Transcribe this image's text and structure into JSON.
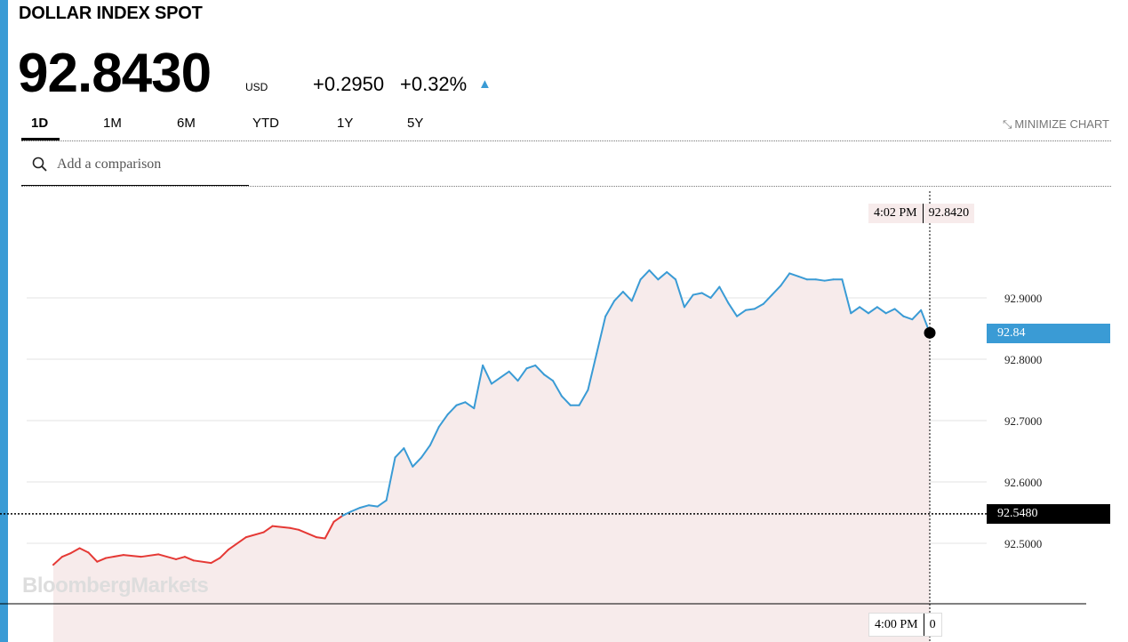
{
  "header": {
    "title": "DOLLAR INDEX SPOT",
    "price": "92.8430",
    "currency": "USD",
    "change_abs": "+0.2950",
    "change_pct": "+0.32%",
    "change_direction": "up",
    "accent_color": "#3a9bd5"
  },
  "tabs": [
    {
      "label": "1D",
      "active": true
    },
    {
      "label": "1M"
    },
    {
      "label": "6M"
    },
    {
      "label": "YTD"
    },
    {
      "label": "1Y"
    },
    {
      "label": "5Y"
    }
  ],
  "minimize": {
    "label": "MINIMIZE CHART",
    "icon": "collapse-arrows-icon"
  },
  "comparison": {
    "placeholder": "Add a comparison",
    "icon": "search-icon"
  },
  "watermark": "BloombergMarkets",
  "chart_data": {
    "type": "line",
    "yticks": [
      "92.9000",
      "92.8000",
      "92.7000",
      "92.6000",
      "92.5000"
    ],
    "ylim": [
      92.4,
      92.965
    ],
    "xlim": [
      0,
      1
    ],
    "grid": true,
    "previous_close": 92.548,
    "previous_close_label": "92.5480",
    "current_value": 92.843,
    "current_label": "92.84",
    "hover": {
      "time": "4:02 PM",
      "value": "92.8420"
    },
    "axis_readout": {
      "time": "4:00 PM",
      "value": "0"
    },
    "colors": {
      "above": "#3a9bd5",
      "below": "#e53935",
      "fill": "#f7ebeb",
      "baseline_tag": "#000000"
    },
    "series": [
      {
        "x": [
          0,
          0.01,
          0.02,
          0.03,
          0.04,
          0.05,
          0.06,
          0.08,
          0.1,
          0.12,
          0.14,
          0.15,
          0.16,
          0.18,
          0.19,
          0.2,
          0.22,
          0.24,
          0.25,
          0.27,
          0.28,
          0.3,
          0.31,
          0.32,
          0.33,
          0.34,
          0.35,
          0.36,
          0.37,
          0.38,
          0.39,
          0.4,
          0.41,
          0.42,
          0.43,
          0.44,
          0.45,
          0.46,
          0.47,
          0.48,
          0.49,
          0.5,
          0.51,
          0.52,
          0.53,
          0.54,
          0.55,
          0.56,
          0.57,
          0.58,
          0.59,
          0.6,
          0.61,
          0.62,
          0.63,
          0.64,
          0.65,
          0.66,
          0.67,
          0.68,
          0.69,
          0.7,
          0.71,
          0.72,
          0.73,
          0.74,
          0.75,
          0.76,
          0.77,
          0.78,
          0.79,
          0.8,
          0.81,
          0.82,
          0.83,
          0.84,
          0.85,
          0.86,
          0.87,
          0.88,
          0.89,
          0.9,
          0.91,
          0.92,
          0.93,
          0.94,
          0.95,
          0.96,
          0.97,
          0.98,
          0.99,
          1.0
        ],
        "y": [
          92.465,
          92.478,
          92.484,
          92.492,
          92.485,
          92.47,
          92.476,
          92.481,
          92.478,
          92.482,
          92.474,
          92.478,
          92.472,
          92.468,
          92.476,
          92.49,
          92.51,
          92.518,
          92.528,
          92.525,
          92.522,
          92.51,
          92.508,
          92.535,
          92.545,
          92.552,
          92.558,
          92.562,
          92.56,
          92.57,
          92.64,
          92.655,
          92.625,
          92.64,
          92.66,
          92.69,
          92.71,
          92.725,
          92.73,
          92.72,
          92.79,
          92.76,
          92.77,
          92.78,
          92.765,
          92.785,
          92.79,
          92.775,
          92.765,
          92.74,
          92.725,
          92.725,
          92.75,
          92.81,
          92.87,
          92.895,
          92.91,
          92.895,
          92.93,
          92.945,
          92.93,
          92.942,
          92.93,
          92.885,
          92.905,
          92.908,
          92.9,
          92.918,
          92.892,
          92.87,
          92.88,
          92.882,
          92.89,
          92.905,
          92.92,
          92.94,
          92.935,
          92.93,
          92.93,
          92.928,
          92.93,
          92.93,
          92.875,
          92.885,
          92.875,
          92.885,
          92.875,
          92.882,
          92.87,
          92.865,
          92.88,
          92.843
        ]
      }
    ]
  }
}
